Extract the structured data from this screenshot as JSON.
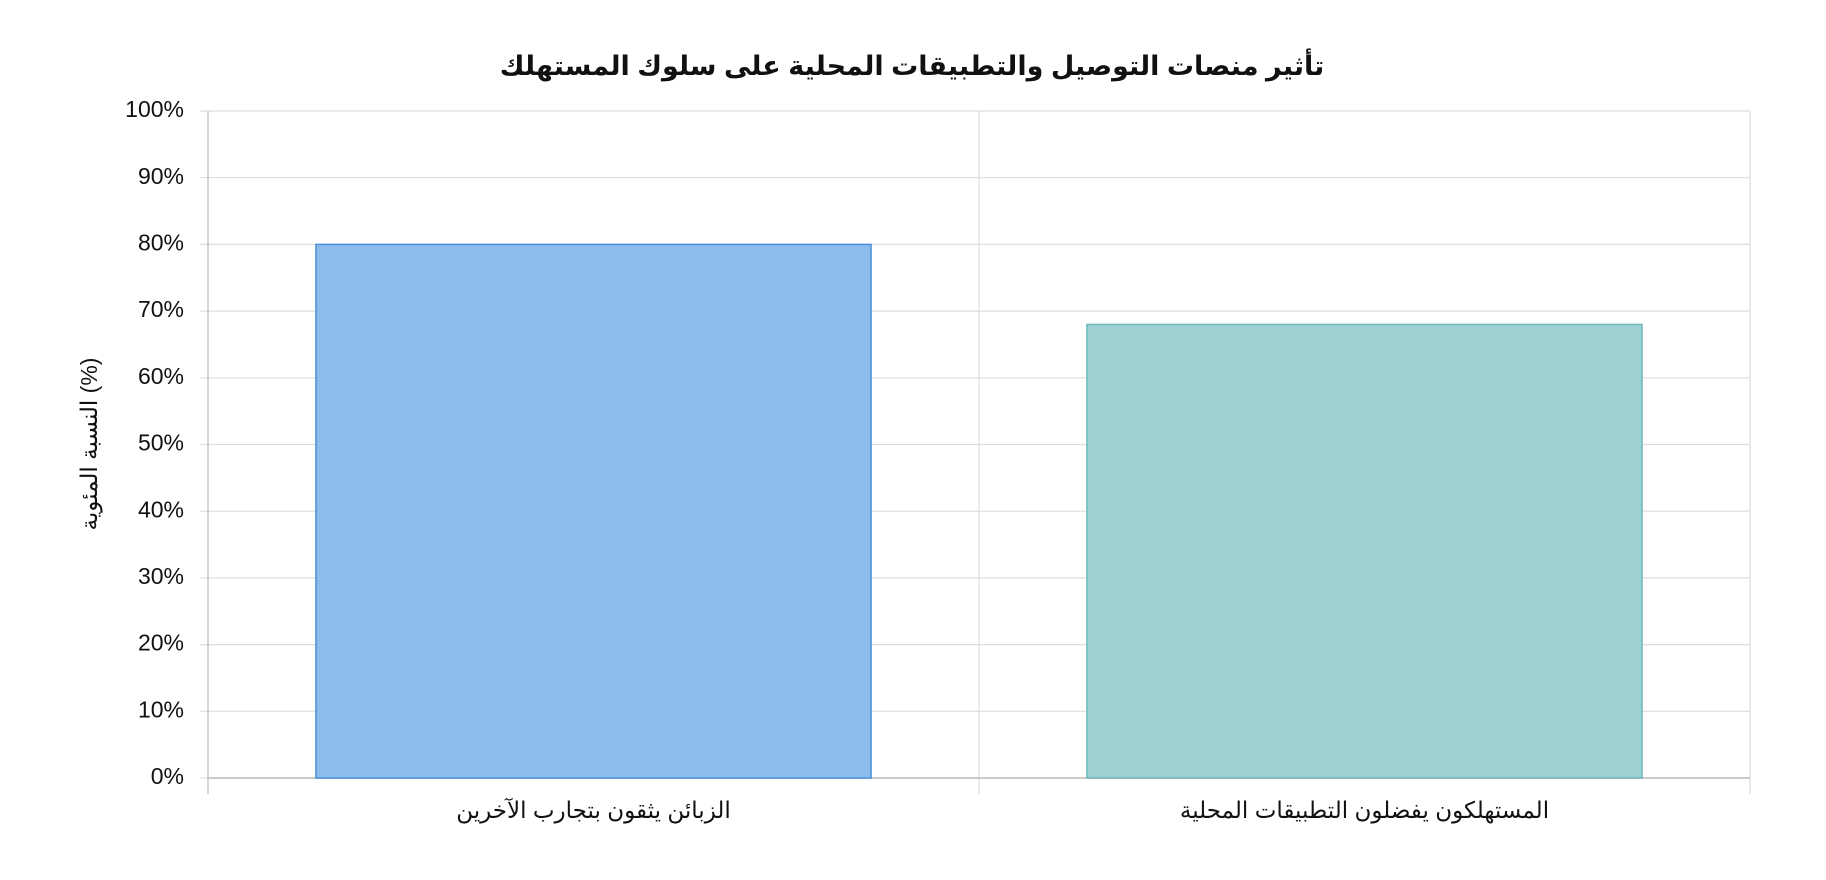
{
  "chart_data": {
    "type": "bar",
    "title": "تأثير منصات التوصيل والتطبيقات المحلية على سلوك المستهلك",
    "ylabel": "النسبة المئوية (%)",
    "categories": [
      "الزبائن يثقون بتجارب الآخرين",
      "المستهلكون يفضلون التطبيقات المحلية"
    ],
    "values": [
      80,
      68
    ],
    "colors": [
      "#8dbbec",
      "#9dd1d2"
    ],
    "border_colors": [
      "#4a90d9",
      "#6fb8b9"
    ],
    "ylim": [
      0,
      100
    ],
    "yticks": [
      {
        "value": 0,
        "label": "0%"
      },
      {
        "value": 10,
        "label": "10%"
      },
      {
        "value": 20,
        "label": "20%"
      },
      {
        "value": 30,
        "label": "30%"
      },
      {
        "value": 40,
        "label": "40%"
      },
      {
        "value": 50,
        "label": "50%"
      },
      {
        "value": 60,
        "label": "60%"
      },
      {
        "value": 70,
        "label": "70%"
      },
      {
        "value": 80,
        "label": "80%"
      },
      {
        "value": 90,
        "label": "90%"
      },
      {
        "value": 100,
        "label": "100%"
      }
    ],
    "grid": true
  }
}
